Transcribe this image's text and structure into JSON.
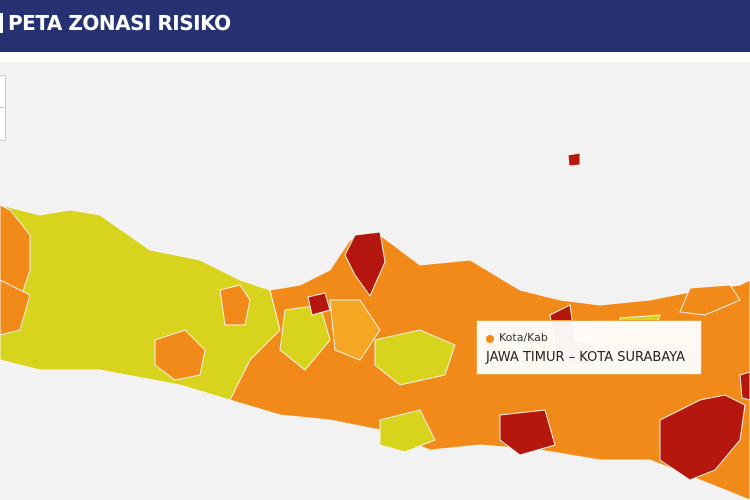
{
  "header": {
    "title": "PETA ZONASI RISIKO"
  },
  "tooltip": {
    "label": "Kota/Kab",
    "region": "JAWA TIMUR – KOTA SURABAYA"
  }
}
